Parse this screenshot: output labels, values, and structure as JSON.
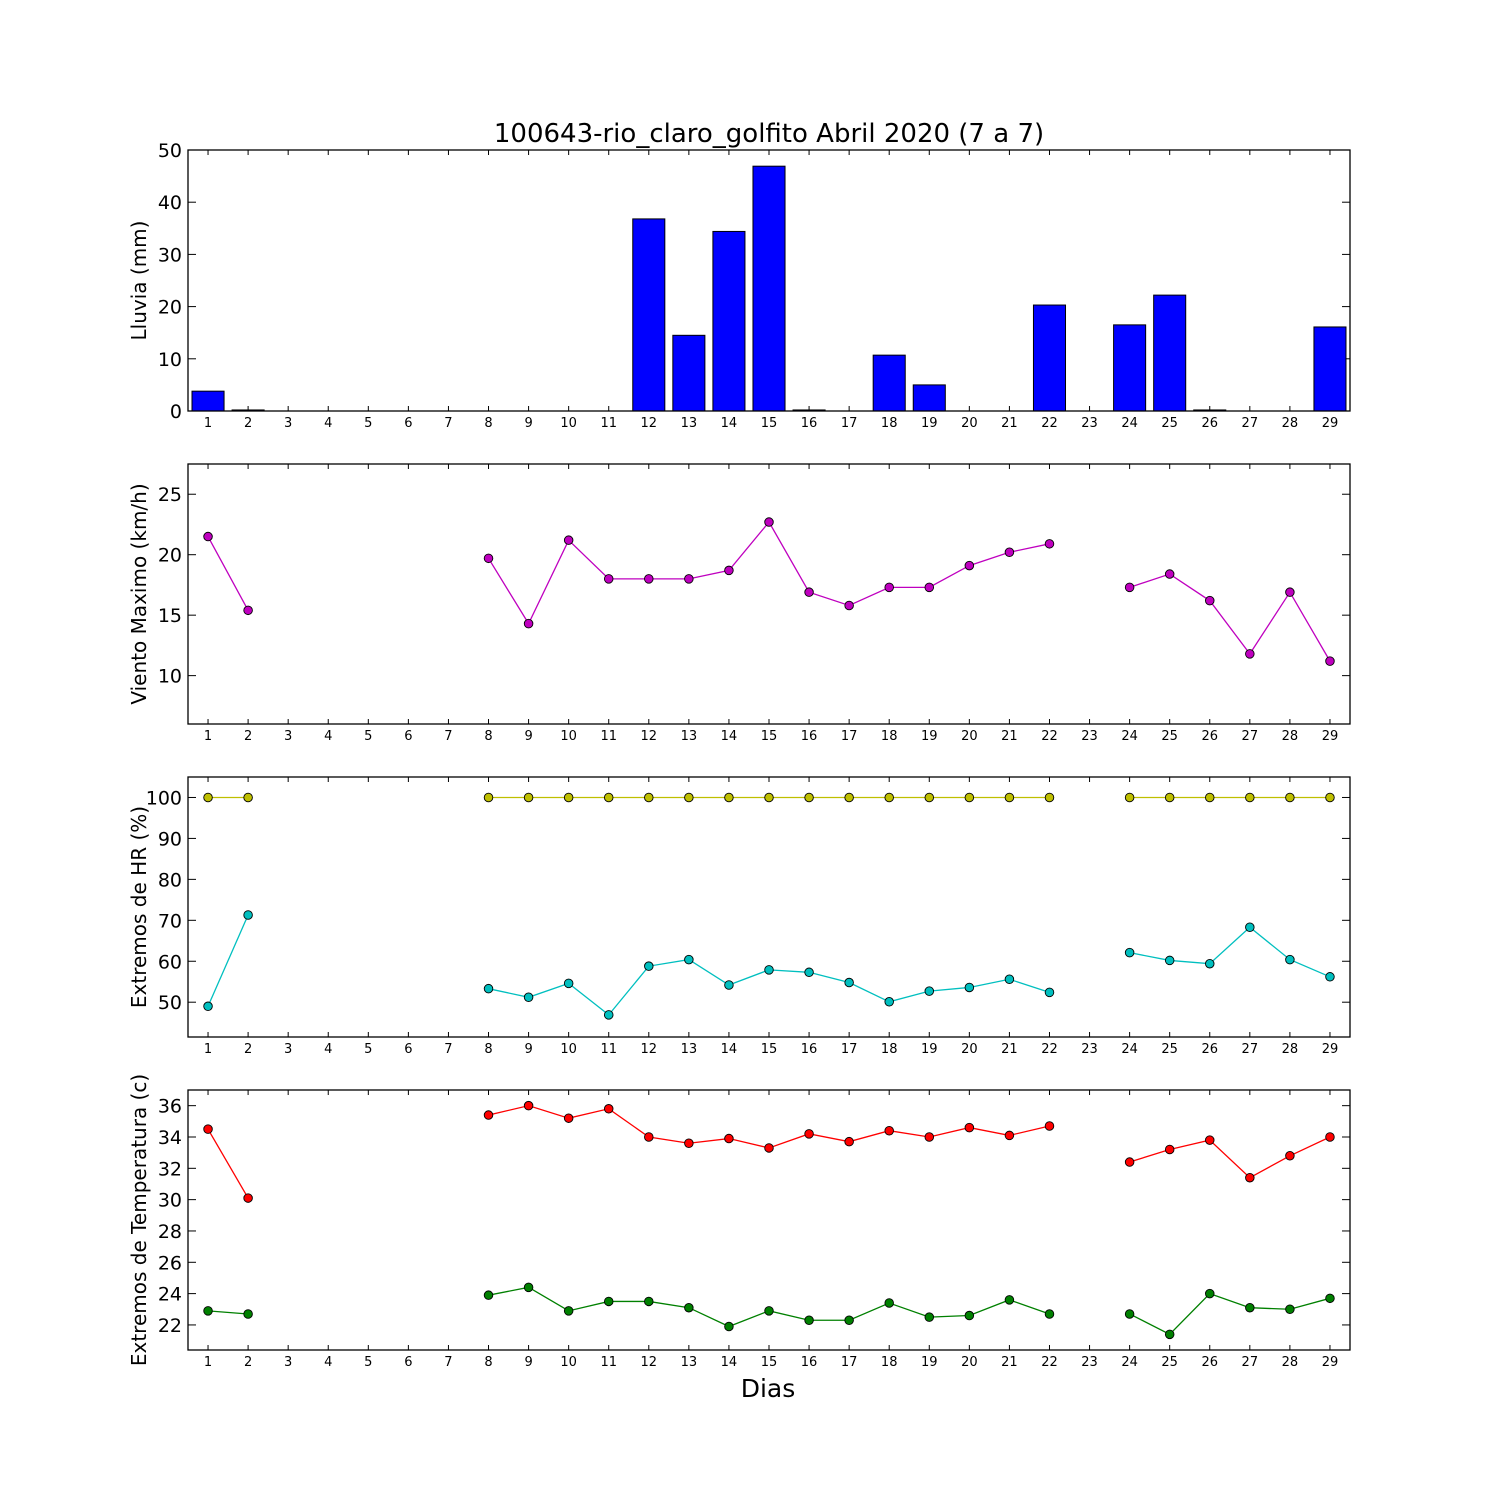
{
  "figure_title": "100643-rio_claro_golfito Abril 2020  (7 a 7)",
  "x_axis_label": "Dias",
  "day_tick_labels": [
    "1",
    "2",
    "3",
    "4",
    "5",
    "6",
    "7",
    "8",
    "9",
    "10",
    "11",
    "12",
    "13",
    "14",
    "15",
    "16",
    "17",
    "18",
    "19",
    "20",
    "21",
    "22",
    "23",
    "24",
    "25",
    "26",
    "27",
    "28",
    "29"
  ],
  "colors": {
    "rain_bar": "#0000ff",
    "wind": "#bf00bf",
    "hr_max": "#bfbf00",
    "hr_min": "#00bfbf",
    "temp_max": "#ff0000",
    "temp_min": "#008000"
  },
  "chart_data": [
    {
      "type": "bar",
      "ylabel": "Lluvia (mm)",
      "ylim": [
        0,
        50
      ],
      "yticks": [
        0,
        10,
        20,
        30,
        40,
        50
      ],
      "categories": [
        1,
        2,
        3,
        4,
        5,
        6,
        7,
        8,
        9,
        10,
        11,
        12,
        13,
        14,
        15,
        16,
        17,
        18,
        19,
        20,
        21,
        22,
        23,
        24,
        25,
        26,
        27,
        28,
        29
      ],
      "values": [
        3.8,
        0.2,
        0,
        0,
        0,
        0,
        0,
        0,
        0,
        0,
        0,
        36.8,
        14.5,
        34.4,
        46.9,
        0.2,
        0,
        10.7,
        5.0,
        0,
        0,
        20.3,
        0,
        16.5,
        22.2,
        0.2,
        0,
        0,
        16.1
      ],
      "grid": false
    },
    {
      "type": "line",
      "ylabel": "Viento Maximo (km/h)",
      "ylim": [
        6,
        27.5
      ],
      "yticks": [
        10,
        15,
        20,
        25
      ],
      "x": [
        1,
        2,
        3,
        4,
        5,
        6,
        7,
        8,
        9,
        10,
        11,
        12,
        13,
        14,
        15,
        16,
        17,
        18,
        19,
        20,
        21,
        22,
        23,
        24,
        25,
        26,
        27,
        28,
        29
      ],
      "series": [
        {
          "color_key": "wind",
          "values": [
            21.5,
            15.4,
            null,
            null,
            null,
            null,
            null,
            19.7,
            14.3,
            21.2,
            18.0,
            18.0,
            18.0,
            18.7,
            22.7,
            16.9,
            15.8,
            17.3,
            17.3,
            19.1,
            20.2,
            20.9,
            null,
            17.3,
            18.4,
            16.2,
            11.8,
            16.9,
            11.2
          ]
        }
      ],
      "grid": false
    },
    {
      "type": "line",
      "ylabel": "Extremos de HR (%)",
      "ylim": [
        41.5,
        105
      ],
      "yticks": [
        50,
        60,
        70,
        80,
        90,
        100
      ],
      "x": [
        1,
        2,
        3,
        4,
        5,
        6,
        7,
        8,
        9,
        10,
        11,
        12,
        13,
        14,
        15,
        16,
        17,
        18,
        19,
        20,
        21,
        22,
        23,
        24,
        25,
        26,
        27,
        28,
        29
      ],
      "series": [
        {
          "color_key": "hr_max",
          "values": [
            100,
            100,
            null,
            null,
            null,
            null,
            null,
            100,
            100,
            100,
            100,
            100,
            100,
            100,
            100,
            100,
            100,
            100,
            100,
            100,
            100,
            100,
            null,
            100,
            100,
            100,
            100,
            100,
            100
          ]
        },
        {
          "color_key": "hr_min",
          "values": [
            49,
            71.3,
            null,
            null,
            null,
            null,
            null,
            53.3,
            51.2,
            54.6,
            46.9,
            58.8,
            60.4,
            54.2,
            57.9,
            57.3,
            54.8,
            50.1,
            52.7,
            53.6,
            55.6,
            52.4,
            null,
            62.1,
            60.2,
            59.4,
            68.3,
            60.4,
            56.2
          ]
        }
      ],
      "grid": false
    },
    {
      "type": "line",
      "ylabel": "Extremos de Temperatura (c)",
      "ylim": [
        20.4,
        37
      ],
      "yticks": [
        22,
        24,
        26,
        28,
        30,
        32,
        34,
        36
      ],
      "x": [
        1,
        2,
        3,
        4,
        5,
        6,
        7,
        8,
        9,
        10,
        11,
        12,
        13,
        14,
        15,
        16,
        17,
        18,
        19,
        20,
        21,
        22,
        23,
        24,
        25,
        26,
        27,
        28,
        29
      ],
      "series": [
        {
          "color_key": "temp_max",
          "values": [
            34.5,
            30.1,
            null,
            null,
            null,
            null,
            null,
            35.4,
            36.0,
            35.2,
            35.8,
            34.0,
            33.6,
            33.9,
            33.3,
            34.2,
            33.7,
            34.4,
            34.0,
            34.6,
            34.1,
            34.7,
            null,
            32.4,
            33.2,
            33.8,
            31.4,
            32.8,
            34.0
          ]
        },
        {
          "color_key": "temp_min",
          "values": [
            22.9,
            22.7,
            null,
            null,
            null,
            null,
            null,
            23.9,
            24.4,
            22.9,
            23.5,
            23.5,
            23.1,
            21.9,
            22.9,
            22.3,
            22.3,
            23.4,
            22.5,
            22.6,
            23.6,
            22.7,
            null,
            22.7,
            21.4,
            24.0,
            23.1,
            23.0,
            23.7
          ]
        }
      ],
      "grid": false
    }
  ]
}
